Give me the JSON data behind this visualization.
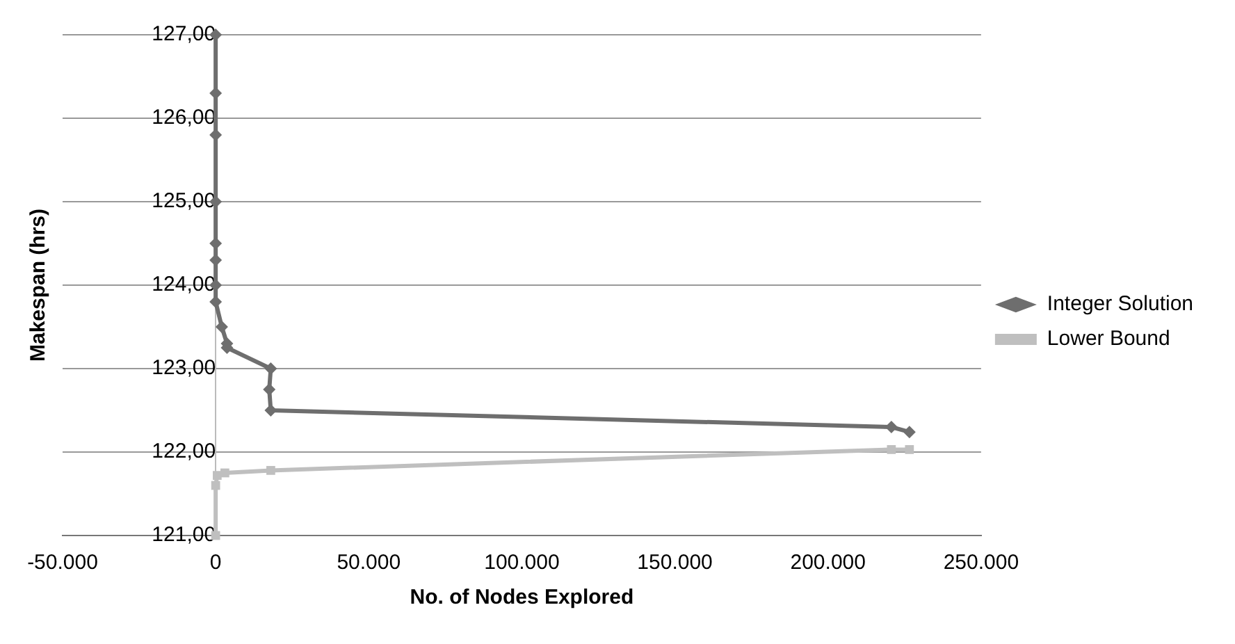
{
  "chart_data": {
    "type": "line",
    "xlabel": "No. of Nodes Explored",
    "ylabel": "Makespan (hrs)",
    "series": [
      {
        "name": "Integer Solution",
        "color": "#6e6e6e",
        "marker": "diamond",
        "x": [
          0,
          0,
          0,
          0,
          0,
          0,
          0,
          0,
          2000,
          3700,
          3700,
          18000,
          17500,
          18000,
          220700,
          226600
        ],
        "values": [
          127,
          126.3,
          125.8,
          125,
          124.5,
          124.3,
          124,
          123.8,
          123.5,
          123.3,
          123.25,
          123,
          122.75,
          122.5,
          122.3,
          122.24
        ]
      },
      {
        "name": "Lower Bound",
        "color": "#bfbfbf",
        "marker": "square",
        "x": [
          0,
          0,
          500,
          3000,
          18000,
          220700,
          226600
        ],
        "values": [
          121,
          121.6,
          121.72,
          121.75,
          121.78,
          122.03,
          122.03
        ]
      }
    ],
    "xlim": [
      -50000,
      250000
    ],
    "xticks": [
      {
        "value": -50000,
        "label": "-50.000"
      },
      0,
      {
        "value": 50000,
        "label": "50.000"
      },
      {
        "value": 100000,
        "label": "100.000"
      },
      {
        "value": 150000,
        "label": "150.000"
      },
      {
        "value": 200000,
        "label": "200.000"
      },
      {
        "value": 250000,
        "label": "250.000"
      }
    ],
    "ylim": [
      121,
      127
    ],
    "yticks": [
      {
        "value": 121,
        "label": "121,00"
      },
      {
        "value": 122,
        "label": "122,00"
      },
      {
        "value": 123,
        "label": "123,00"
      },
      {
        "value": 124,
        "label": "124,00"
      },
      {
        "value": 125,
        "label": "125,00"
      },
      {
        "value": 126,
        "label": "126,00"
      },
      {
        "value": 127,
        "label": "127,00"
      }
    ],
    "grid": "y",
    "legend": "right",
    "line_style": "solid"
  }
}
